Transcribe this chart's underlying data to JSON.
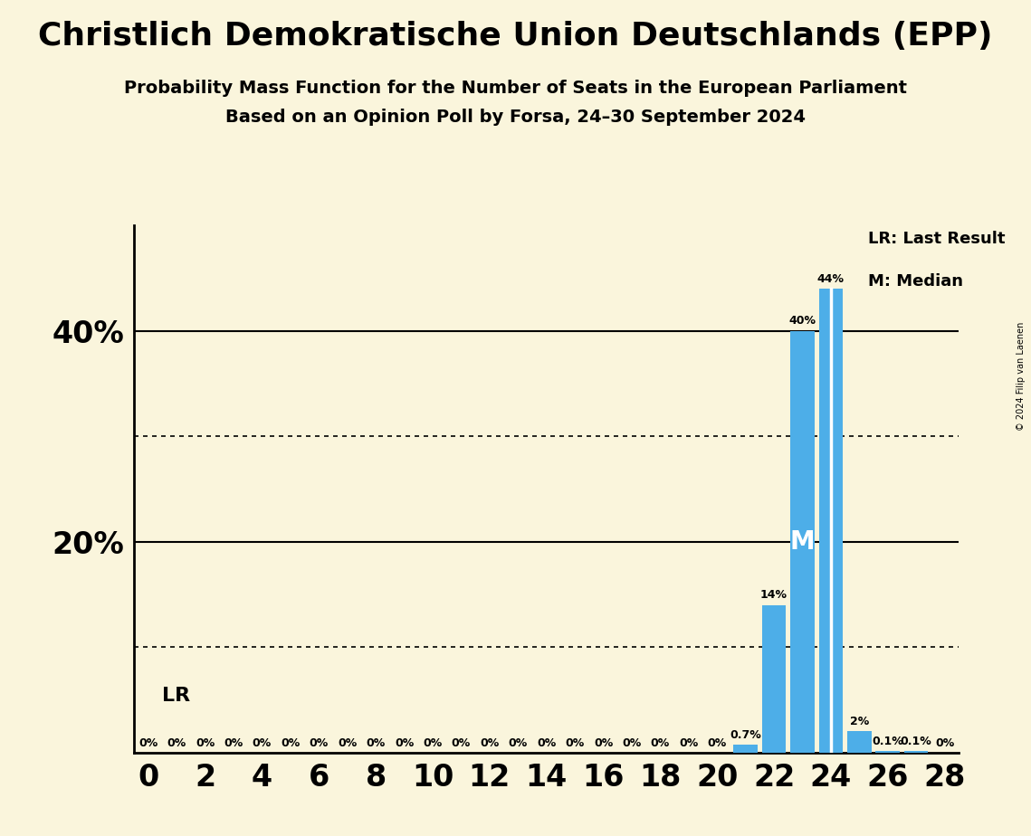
{
  "title": "Christlich Demokratische Union Deutschlands (EPP)",
  "subtitle1": "Probability Mass Function for the Number of Seats in the European Parliament",
  "subtitle2": "Based on an Opinion Poll by Forsa, 24–30 September 2024",
  "copyright": "© 2024 Filip van Laenen",
  "seats": [
    0,
    1,
    2,
    3,
    4,
    5,
    6,
    7,
    8,
    9,
    10,
    11,
    12,
    13,
    14,
    15,
    16,
    17,
    18,
    19,
    20,
    21,
    22,
    23,
    24,
    25,
    26,
    27,
    28
  ],
  "probabilities": [
    0.0,
    0.0,
    0.0,
    0.0,
    0.0,
    0.0,
    0.0,
    0.0,
    0.0,
    0.0,
    0.0,
    0.0,
    0.0,
    0.0,
    0.0,
    0.0,
    0.0,
    0.0,
    0.0,
    0.0,
    0.0,
    0.7,
    14.0,
    40.0,
    44.0,
    2.0,
    0.1,
    0.1,
    0.0
  ],
  "prob_labels": [
    "0%",
    "0%",
    "0%",
    "0%",
    "0%",
    "0%",
    "0%",
    "0%",
    "0%",
    "0%",
    "0%",
    "0%",
    "0%",
    "0%",
    "0%",
    "0%",
    "0%",
    "0%",
    "0%",
    "0%",
    "0%",
    "0.7%",
    "14%",
    "40%",
    "44%",
    "2%",
    "0.1%",
    "0.1%",
    "0%"
  ],
  "bar_color": "#4DAEE8",
  "background_color": "#FAF5DC",
  "text_color": "#000000",
  "median_seat": 23,
  "last_result_seat": 24,
  "solid_yticks": [
    20,
    40
  ],
  "dotted_yticks": [
    10,
    30
  ],
  "xlim": [
    -0.5,
    28.5
  ],
  "ylim": [
    0,
    50
  ],
  "xlabel_seats": [
    0,
    2,
    4,
    6,
    8,
    10,
    12,
    14,
    16,
    18,
    20,
    22,
    24,
    26,
    28
  ]
}
